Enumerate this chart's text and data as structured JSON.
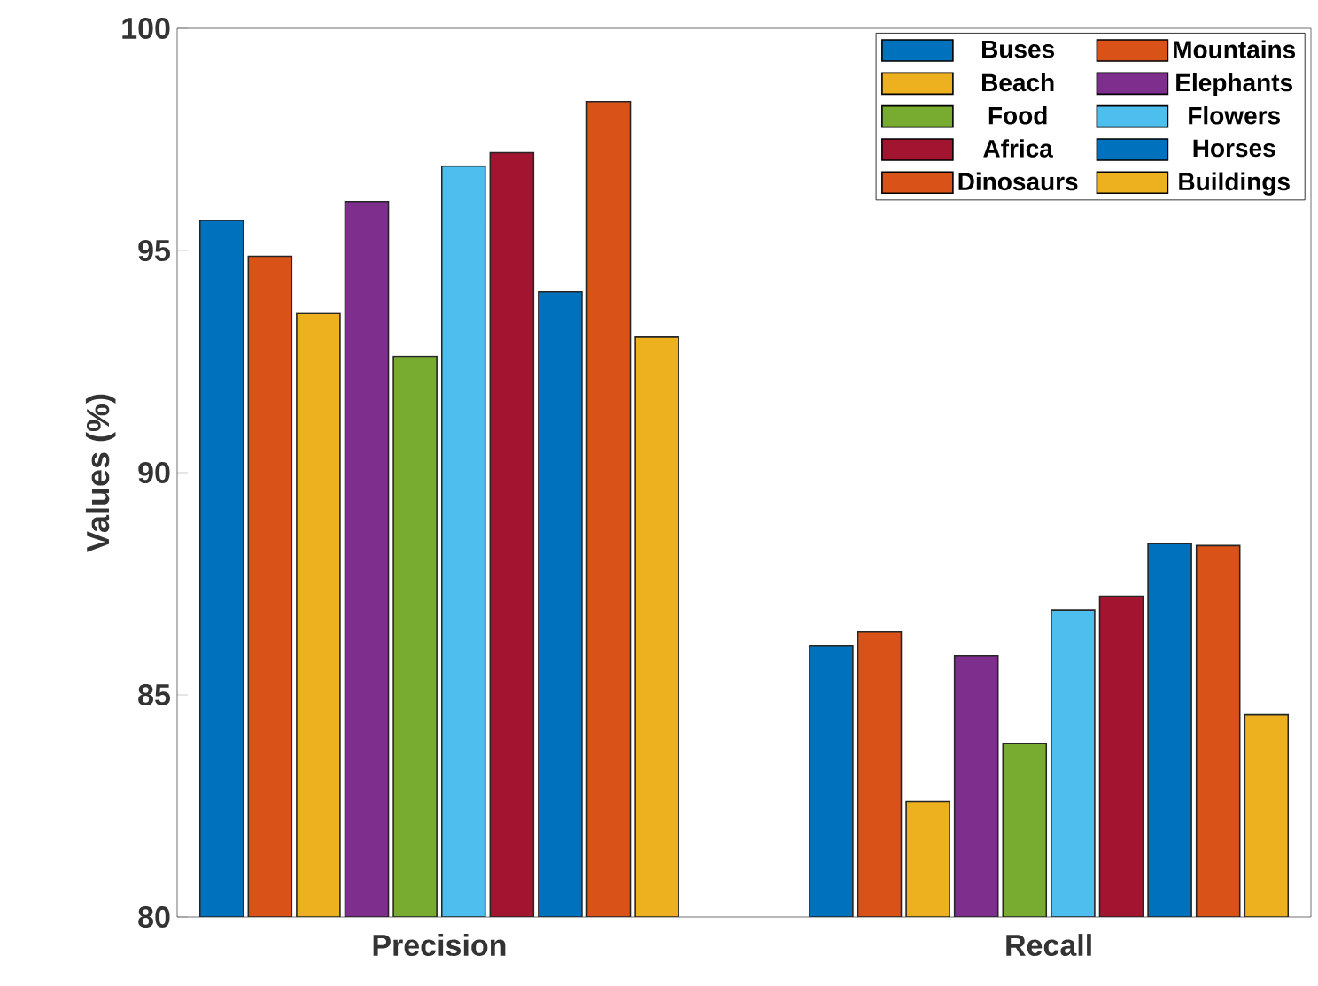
{
  "chart_data": {
    "type": "bar",
    "ylabel": "Values (%)",
    "categories": [
      "Precision",
      "Recall"
    ],
    "series": [
      {
        "name": "Buses",
        "color": "#0072bd",
        "values": [
          95.68,
          86.1
        ]
      },
      {
        "name": "Mountains",
        "color": "#d95319",
        "values": [
          94.87,
          86.42
        ]
      },
      {
        "name": "Beach",
        "color": "#edb120",
        "values": [
          93.58,
          82.6
        ]
      },
      {
        "name": "Elephants",
        "color": "#7e2f8e",
        "values": [
          96.1,
          85.88
        ]
      },
      {
        "name": "Food",
        "color": "#77ac30",
        "values": [
          92.62,
          83.9
        ]
      },
      {
        "name": "Flowers",
        "color": "#4dbeee",
        "values": [
          96.9,
          86.91
        ]
      },
      {
        "name": "Africa",
        "color": "#a2142f",
        "values": [
          97.2,
          87.22
        ]
      },
      {
        "name": "Horses",
        "color": "#0072bd",
        "values": [
          94.07,
          88.4
        ]
      },
      {
        "name": "Dinosaurs",
        "color": "#d95319",
        "values": [
          98.35,
          88.36
        ]
      },
      {
        "name": "Buildings",
        "color": "#edb120",
        "values": [
          93.05,
          84.55
        ]
      }
    ],
    "ylim": [
      80,
      100
    ],
    "yticks": [
      80,
      85,
      90,
      95,
      100
    ],
    "legend": "top right"
  }
}
